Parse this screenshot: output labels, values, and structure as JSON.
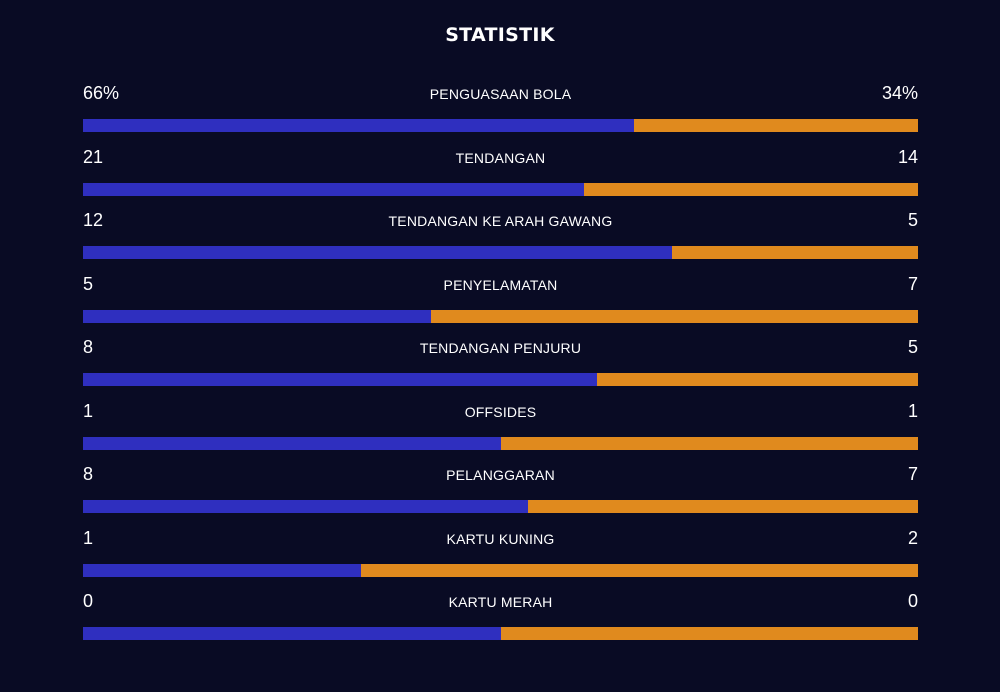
{
  "title": "STATISTIK",
  "colors": {
    "home": "#2f2fbf",
    "away": "#e08a1e",
    "background": "#090b24"
  },
  "stats": [
    {
      "label": "PENGUASAAN BOLA",
      "home": "66%",
      "away": "34%",
      "home_share": 0.66
    },
    {
      "label": "TENDANGAN",
      "home": "21",
      "away": "14",
      "home_share": 0.6
    },
    {
      "label": "TENDANGAN KE ARAH GAWANG",
      "home": "12",
      "away": "5",
      "home_share": 0.7059
    },
    {
      "label": "PENYELAMATAN",
      "home": "5",
      "away": "7",
      "home_share": 0.4167
    },
    {
      "label": "TENDANGAN PENJURU",
      "home": "8",
      "away": "5",
      "home_share": 0.6154
    },
    {
      "label": "OFFSIDES",
      "home": "1",
      "away": "1",
      "home_share": 0.5
    },
    {
      "label": "PELANGGARAN",
      "home": "8",
      "away": "7",
      "home_share": 0.5333
    },
    {
      "label": "KARTU KUNING",
      "home": "1",
      "away": "2",
      "home_share": 0.3333
    },
    {
      "label": "KARTU MERAH",
      "home": "0",
      "away": "0",
      "home_share": 0.5
    }
  ]
}
